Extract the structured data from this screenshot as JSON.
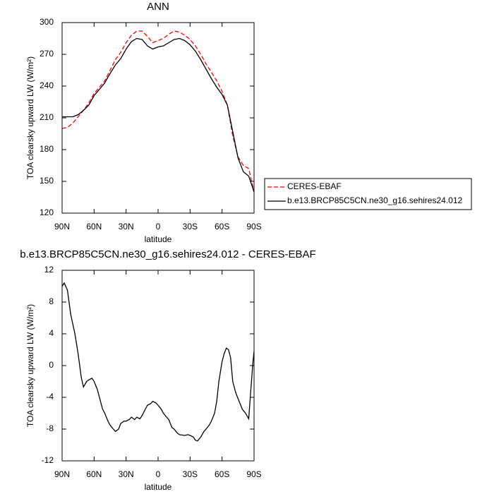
{
  "chart_data": [
    {
      "type": "line",
      "title": "ANN",
      "y_label": "TOA clearsky upward LW (W/m²)",
      "x_label": "latitude",
      "x": [
        90,
        85,
        80,
        75,
        70,
        65,
        60,
        55,
        50,
        45,
        40,
        35,
        30,
        25,
        20,
        15,
        10,
        5,
        0,
        -5,
        -10,
        -15,
        -20,
        -25,
        -30,
        -35,
        -40,
        -45,
        -50,
        -55,
        -60,
        -65,
        -70,
        -75,
        -80,
        -85,
        -90
      ],
      "series": [
        {
          "name": "CERES-EBAF",
          "color": "#ff0000",
          "line_style": "dashed",
          "values": [
            200,
            201,
            205,
            211,
            217,
            224,
            233,
            239,
            245,
            255,
            265,
            272,
            281,
            288,
            292,
            292,
            287,
            281,
            283,
            285,
            289,
            292,
            291,
            288,
            284,
            278,
            270,
            261,
            253,
            245,
            235,
            222,
            193,
            173,
            165,
            162,
            140
          ]
        },
        {
          "name": "b.e13.BRCP85C5CN.ne30_g16.sehires24.012",
          "color": "#000000",
          "line_style": "solid",
          "values": [
            211,
            211,
            211,
            213,
            217,
            222,
            231,
            237,
            243,
            252,
            260,
            266,
            275,
            282,
            285,
            284,
            278,
            275,
            277,
            278,
            281,
            284,
            285,
            283,
            279,
            273,
            265,
            256,
            247,
            239,
            232,
            222,
            197,
            172,
            159,
            155,
            140
          ]
        }
      ],
      "xlim": [
        90,
        -90
      ],
      "xticks": [
        {
          "value": 90,
          "label": "90N"
        },
        {
          "value": 60,
          "label": "60N"
        },
        {
          "value": 30,
          "label": "30N"
        },
        0,
        {
          "value": -30,
          "label": "30S"
        },
        {
          "value": -60,
          "label": "60S"
        },
        {
          "value": -90,
          "label": "90S"
        }
      ],
      "ylim": [
        120,
        300
      ],
      "yticks": [
        120,
        150,
        180,
        210,
        240,
        270,
        300
      ],
      "legend": "right"
    },
    {
      "type": "line",
      "title": "b.e13.BRCP85C5CN.ne30_g16.sehires24.012 - CERES-EBAF",
      "y_label": "TOA clearsky upward LW (W/m²)",
      "x_label": "latitude",
      "x": [
        90,
        88,
        85,
        82,
        78,
        75,
        72,
        70,
        67,
        65,
        62,
        60,
        57,
        55,
        52,
        50,
        47,
        45,
        42,
        40,
        37,
        35,
        32,
        30,
        27,
        25,
        22,
        20,
        17,
        15,
        12,
        10,
        7,
        5,
        2,
        0,
        -3,
        -5,
        -8,
        -10,
        -13,
        -15,
        -18,
        -20,
        -25,
        -28,
        -30,
        -33,
        -35,
        -37,
        -40,
        -43,
        -45,
        -48,
        -50,
        -53,
        -55,
        -57,
        -60,
        -62,
        -64,
        -66,
        -68,
        -70,
        -73,
        -76,
        -79,
        -82,
        -85,
        -87,
        -89,
        -90
      ],
      "series": [
        {
          "name": "b.e13.BRCP85C5CN.ne30_g16.sehires24.012 - CERES-EBAF",
          "color": "#000000",
          "line_style": "solid",
          "values": [
            10,
            10.4,
            9.5,
            6.5,
            4,
            1.5,
            -1.5,
            -2.7,
            -2,
            -1.8,
            -1.6,
            -2,
            -3,
            -4,
            -5.5,
            -6,
            -7,
            -7.5,
            -8,
            -8.3,
            -8,
            -7.3,
            -7,
            -7,
            -6.8,
            -6.5,
            -6.8,
            -6.5,
            -6.7,
            -6.3,
            -5.5,
            -5,
            -4.8,
            -4.5,
            -4.7,
            -5,
            -5.5,
            -6,
            -6.5,
            -6.8,
            -7.8,
            -8,
            -8.5,
            -8.7,
            -8.8,
            -8.7,
            -8.8,
            -9,
            -9.4,
            -9.5,
            -9,
            -8.3,
            -8,
            -7.5,
            -7,
            -6,
            -4.5,
            -2,
            0.5,
            1.5,
            2.2,
            2,
            1,
            -2,
            -3.5,
            -4.5,
            -5.5,
            -6,
            -6.7,
            -3,
            0.5,
            1.8
          ]
        }
      ],
      "xlim": [
        90,
        -90
      ],
      "xticks": [
        {
          "value": 90,
          "label": "90N"
        },
        {
          "value": 60,
          "label": "60N"
        },
        {
          "value": 30,
          "label": "30N"
        },
        0,
        {
          "value": -30,
          "label": "30S"
        },
        {
          "value": -60,
          "label": "60S"
        },
        {
          "value": -90,
          "label": "90S"
        }
      ],
      "ylim": [
        -12,
        12
      ],
      "yticks": [
        -12,
        -8,
        -4,
        0,
        4,
        8,
        12
      ]
    }
  ]
}
